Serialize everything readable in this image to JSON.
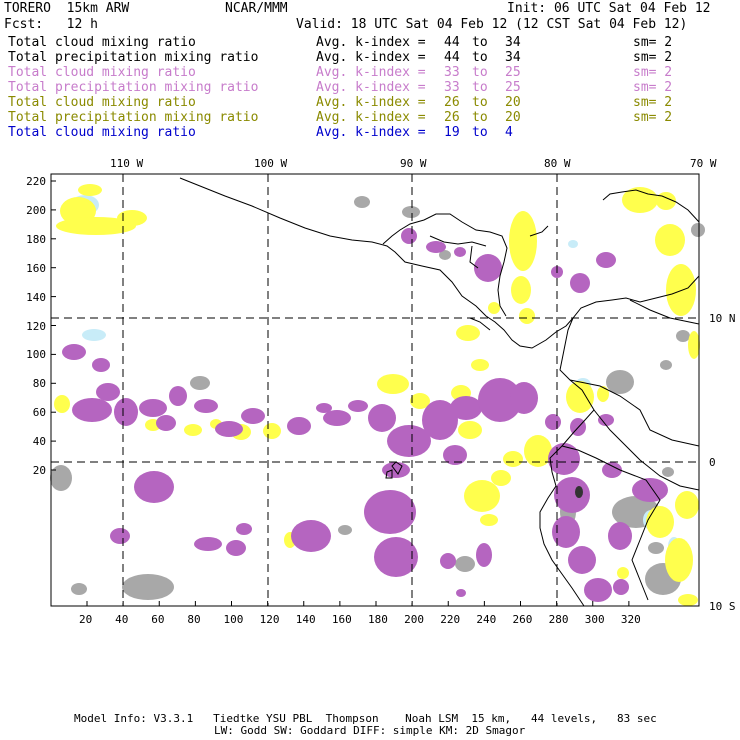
{
  "header": {
    "model": "TORERO  15km ARW",
    "org": "NCAR/MMM",
    "init": "Init: 06 UTC Sat 04 Feb 12",
    "fcst": "Fcst:   12 h",
    "valid": "Valid: 18 UTC Sat 04 Feb 12 (12 CST Sat 04 Feb 12)"
  },
  "legend": [
    {
      "field": "Total cloud mixing ratio",
      "kindex": "Avg. k-index =",
      "from": "44",
      "to": "to",
      "end": "34",
      "sm": "sm= 2",
      "color": "#000000"
    },
    {
      "field": "Total precipitation mixing ratio",
      "kindex": "Avg. k-index =",
      "from": "44",
      "to": "to",
      "end": "34",
      "sm": "sm= 2",
      "color": "#000000"
    },
    {
      "field": "Total cloud mixing ratio",
      "kindex": "Avg. k-index =",
      "from": "33",
      "to": "to",
      "end": "25",
      "sm": "sm= 2",
      "color": "#c77ccb"
    },
    {
      "field": "Total precipitation mixing ratio",
      "kindex": "Avg. k-index =",
      "from": "33",
      "to": "to",
      "end": "25",
      "sm": "sm= 2",
      "color": "#c77ccb"
    },
    {
      "field": "Total cloud mixing ratio",
      "kindex": "Avg. k-index =",
      "from": "26",
      "to": "to",
      "end": "20",
      "sm": "sm= 2",
      "color": "#8a8a00"
    },
    {
      "field": "Total precipitation mixing ratio",
      "kindex": "Avg. k-index =",
      "from": "26",
      "to": "to",
      "end": "20",
      "sm": "sm= 2",
      "color": "#8a8a00"
    },
    {
      "field": "Total cloud mixing ratio",
      "kindex": "Avg. k-index =",
      "from": "19",
      "to": "to",
      "end": "4",
      "sm": "",
      "color": "#0000cc"
    }
  ],
  "map": {
    "lon_labels": [
      "110 W",
      "100 W",
      "90 W",
      "80 W",
      "70 W"
    ],
    "lat_labels": [
      "10 N",
      "0",
      "10 S"
    ],
    "x_ticks": [
      "20",
      "40",
      "60",
      "80",
      "100",
      "120",
      "140",
      "160",
      "180",
      "200",
      "220",
      "240",
      "260",
      "280",
      "300",
      "320"
    ],
    "y_ticks": [
      "220",
      "200",
      "180",
      "160",
      "140",
      "120",
      "100",
      "80",
      "60",
      "40",
      "20"
    ],
    "colors": {
      "purple": "#b565c0",
      "yellow": "#ffff4d",
      "gray": "#a8a8a8",
      "lightblue": "#c8ecf8",
      "dark": "#333333"
    }
  },
  "footer": {
    "line1": "Model Info: V3.3.1   Tiedtke YSU PBL  Thompson    Noah LSM  15 km,   44 levels,   83 sec",
    "line2": "LW: Godd SW: Goddard DIFF: simple KM: 2D Smagor"
  }
}
